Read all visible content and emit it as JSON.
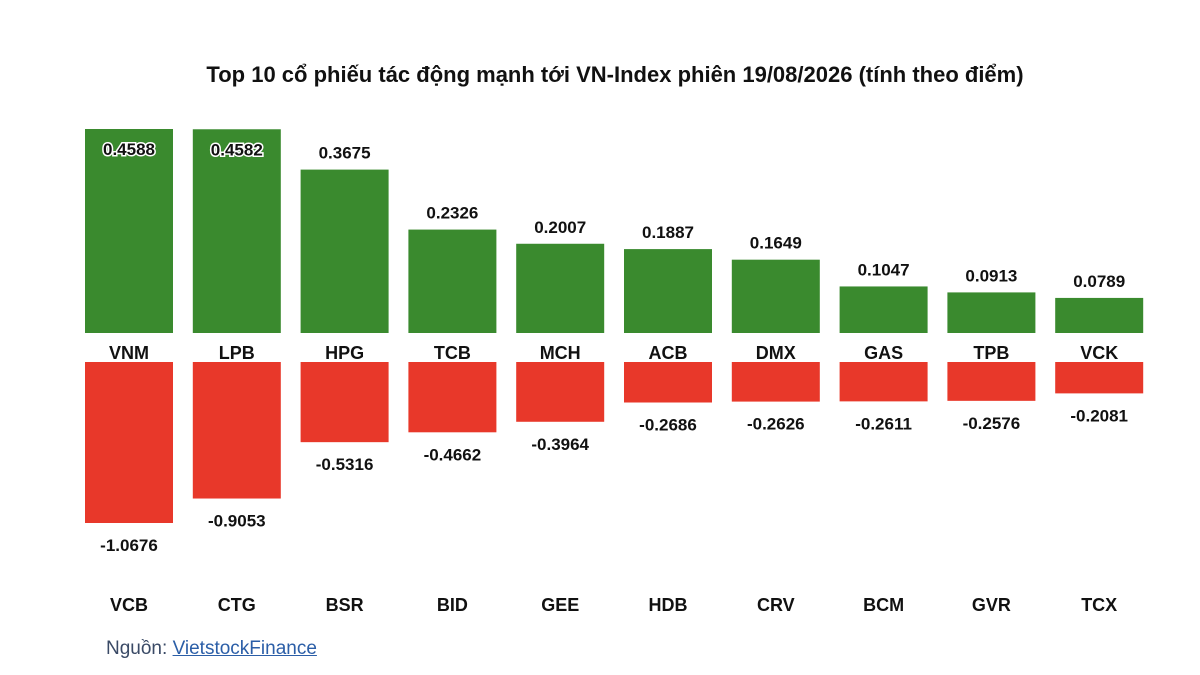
{
  "title": "Top 10 cổ phiếu tác động mạnh tới VN-Index phiên 19/08/2026 (tính theo điểm)",
  "source": {
    "label": "Nguồn:",
    "link_text": "VietstockFinance"
  },
  "colors": {
    "positive": "#3a8a2e",
    "negative": "#e8382a"
  },
  "chart_data": {
    "type": "bar",
    "title": "Top 10 cổ phiếu tác động mạnh tới VN-Index phiên 19/08/2026 (tính theo điểm)",
    "positive_series": {
      "categories": [
        "VNM",
        "LPB",
        "HPG",
        "TCB",
        "MCH",
        "ACB",
        "DMX",
        "GAS",
        "TPB",
        "VCK"
      ],
      "values": [
        0.4588,
        0.4582,
        0.3675,
        0.2326,
        0.2007,
        0.1887,
        0.1649,
        0.1047,
        0.0913,
        0.0789
      ],
      "labels": [
        "0.4588",
        "0.4582",
        "0.3675",
        "0.2326",
        "0.2007",
        "0.1887",
        "0.1649",
        "0.1047",
        "0.0913",
        "0.0789"
      ]
    },
    "negative_series": {
      "categories": [
        "VCB",
        "CTG",
        "BSR",
        "BID",
        "GEE",
        "HDB",
        "CRV",
        "BCM",
        "GVR",
        "TCX"
      ],
      "values": [
        -1.0676,
        -0.9053,
        -0.5316,
        -0.4662,
        -0.3964,
        -0.2686,
        -0.2626,
        -0.2611,
        -0.2576,
        -0.2081
      ],
      "labels": [
        "-1.0676",
        "-0.9053",
        "-0.5316",
        "-0.4662",
        "-0.3964",
        "-0.2686",
        "-0.2626",
        "-0.2611",
        "-0.2576",
        "-0.2081"
      ]
    },
    "grid": false,
    "legend": "none"
  }
}
